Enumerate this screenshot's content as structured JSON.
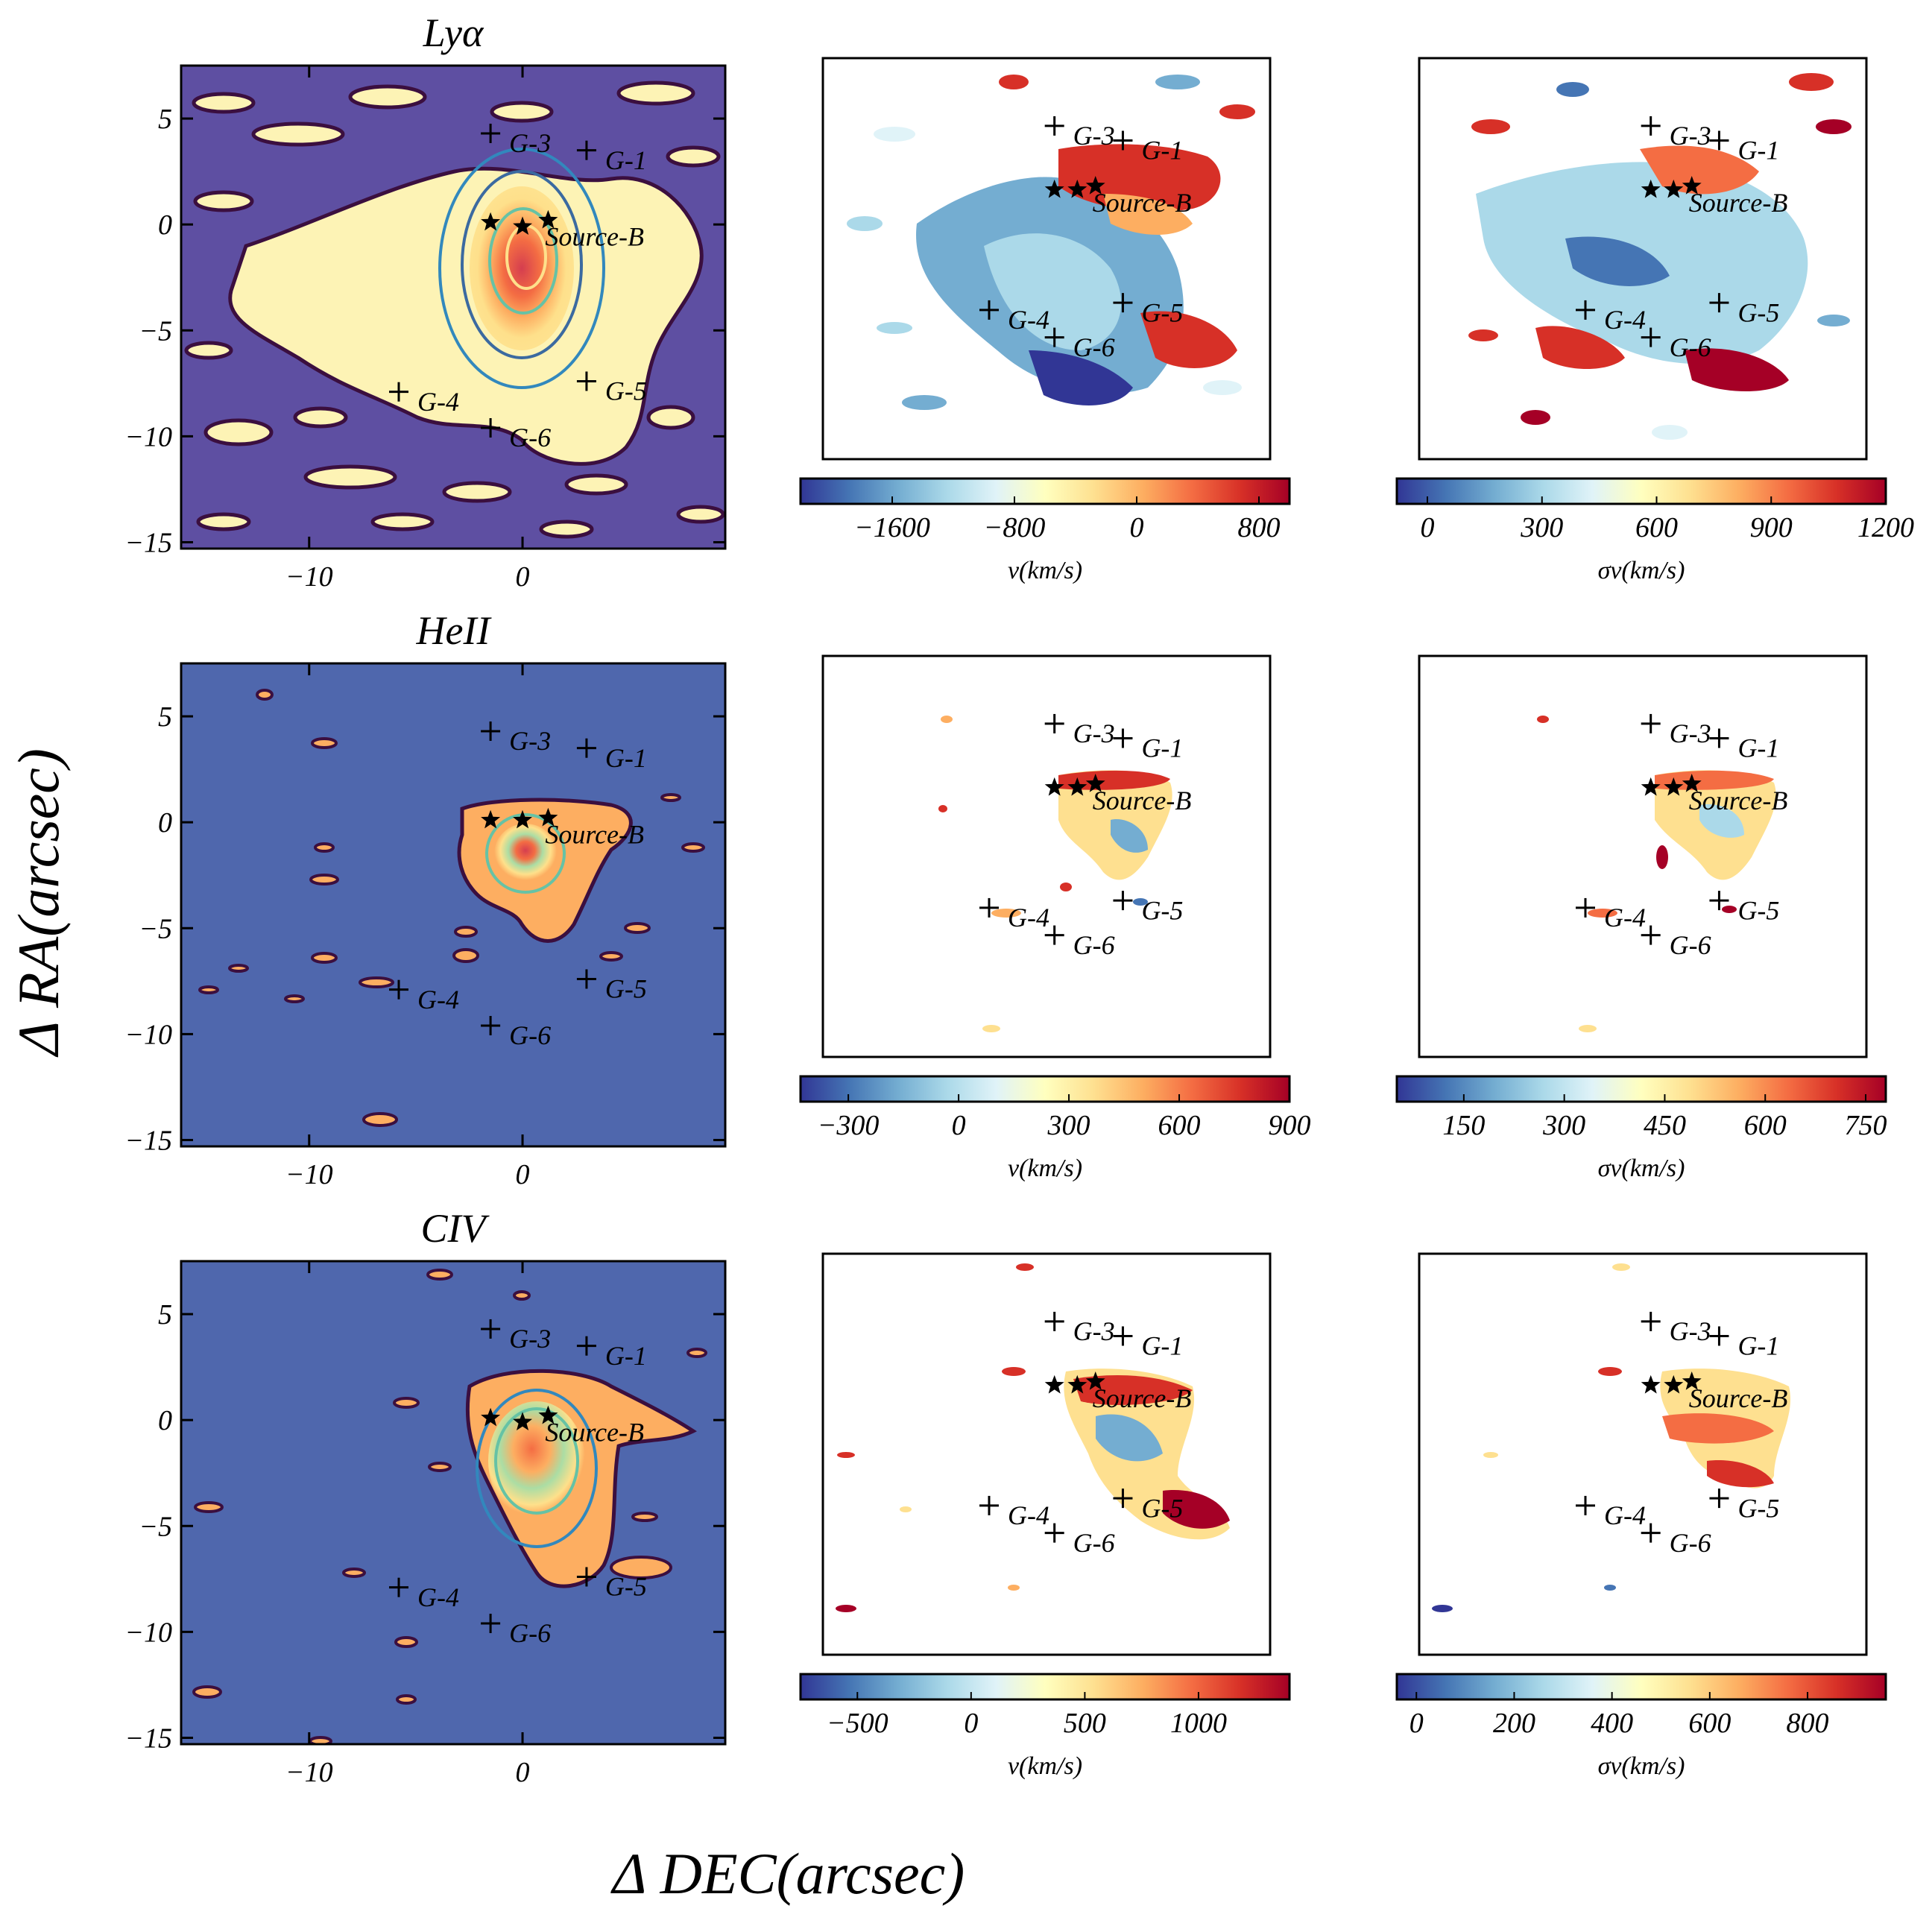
{
  "figure": {
    "xlabel": "Δ DEC(arcsec)",
    "ylabel": "Δ RA(arcsec)"
  },
  "chart_data": [
    {
      "type": "heatmap",
      "title": "Lyα",
      "panel": "flux-map",
      "background": "#5e4fa2",
      "x_ticks": [
        "−10",
        "0"
      ],
      "y_ticks": [
        "5",
        "0",
        "−5",
        "−10",
        "−15"
      ],
      "xlim": [
        -16,
        9.5
      ],
      "ylim": [
        -15.3,
        7.5
      ],
      "markers": [
        {
          "name": "G-1",
          "x": 3.0,
          "y": 3.5
        },
        {
          "name": "G-3",
          "x": -1.5,
          "y": 4.3
        },
        {
          "name": "G-4",
          "x": -5.8,
          "y": -7.9
        },
        {
          "name": "G-5",
          "x": 3.0,
          "y": -7.4
        },
        {
          "name": "G-6",
          "x": -1.5,
          "y": -9.6
        }
      ],
      "stars": [
        {
          "x": -1.5,
          "y": 0.1
        },
        {
          "x": 0.0,
          "y": -0.1
        },
        {
          "x": 1.2,
          "y": 0.2
        }
      ],
      "star_label": "Source-B"
    },
    {
      "type": "heatmap",
      "title": "HeII",
      "panel": "flux-map",
      "background": "#4f67ad",
      "x_ticks": [
        "−10",
        "0"
      ],
      "y_ticks": [
        "5",
        "0",
        "−5",
        "−10",
        "−15"
      ],
      "xlim": [
        -16,
        9.5
      ],
      "ylim": [
        -15.3,
        7.5
      ],
      "markers": [
        {
          "name": "G-1",
          "x": 3.0,
          "y": 3.5
        },
        {
          "name": "G-3",
          "x": -1.5,
          "y": 4.3
        },
        {
          "name": "G-4",
          "x": -5.8,
          "y": -7.9
        },
        {
          "name": "G-5",
          "x": 3.0,
          "y": -7.4
        },
        {
          "name": "G-6",
          "x": -1.5,
          "y": -9.6
        }
      ],
      "stars": [
        {
          "x": -1.5,
          "y": 0.1
        },
        {
          "x": 0.0,
          "y": 0.1
        },
        {
          "x": 1.2,
          "y": 0.2
        }
      ],
      "star_label": "Source-B"
    },
    {
      "type": "heatmap",
      "title": "CIV",
      "panel": "flux-map",
      "background": "#4f67ad",
      "x_ticks": [
        "−10",
        "0"
      ],
      "y_ticks": [
        "5",
        "0",
        "−5",
        "−10",
        "−15"
      ],
      "xlim": [
        -16,
        9.5
      ],
      "ylim": [
        -15.3,
        7.5
      ],
      "markers": [
        {
          "name": "G-1",
          "x": 3.0,
          "y": 3.5
        },
        {
          "name": "G-3",
          "x": -1.5,
          "y": 4.3
        },
        {
          "name": "G-4",
          "x": -5.8,
          "y": -7.9
        },
        {
          "name": "G-5",
          "x": 3.0,
          "y": -7.4
        },
        {
          "name": "G-6",
          "x": -1.5,
          "y": -9.6
        }
      ],
      "stars": [
        {
          "x": -1.5,
          "y": 0.1
        },
        {
          "x": 0.0,
          "y": -0.1
        },
        {
          "x": 1.2,
          "y": 0.2
        }
      ],
      "star_label": "Source-B"
    },
    {
      "type": "heatmap",
      "panel": "velocity-map",
      "line": "Lyα",
      "colorbar": {
        "label": "v(km/s)",
        "min": -2200,
        "max": 1000,
        "ticks": [
          "−1600",
          "−800",
          "0",
          "800"
        ],
        "tick_values": [
          -1600,
          -800,
          0,
          800
        ]
      },
      "markers": [
        "G-1",
        "G-3",
        "G-4",
        "G-5",
        "G-6"
      ],
      "star_label": "Source-B"
    },
    {
      "type": "heatmap",
      "panel": "dispersion-map",
      "line": "Lyα",
      "colorbar": {
        "label": "σv(km/s)",
        "min": -80,
        "max": 1200,
        "ticks": [
          "0",
          "300",
          "600",
          "900",
          "1200"
        ],
        "tick_values": [
          0,
          300,
          600,
          900,
          1200
        ]
      },
      "markers": [
        "G-1",
        "G-3",
        "G-4",
        "G-5",
        "G-6"
      ],
      "star_label": "Source-B"
    },
    {
      "type": "heatmap",
      "panel": "velocity-map",
      "line": "HeII",
      "colorbar": {
        "label": "v(km/s)",
        "min": -430,
        "max": 900,
        "ticks": [
          "−300",
          "0",
          "300",
          "600",
          "900"
        ],
        "tick_values": [
          -300,
          0,
          300,
          600,
          900
        ]
      },
      "markers": [
        "G-1",
        "G-3",
        "G-4",
        "G-5",
        "G-6"
      ],
      "star_label": "Source-B"
    },
    {
      "type": "heatmap",
      "panel": "dispersion-map",
      "line": "HeII",
      "colorbar": {
        "label": "σv(km/s)",
        "min": 50,
        "max": 780,
        "ticks": [
          "150",
          "300",
          "450",
          "600",
          "750"
        ],
        "tick_values": [
          150,
          300,
          450,
          600,
          750
        ]
      },
      "markers": [
        "G-1",
        "G-3",
        "G-4",
        "G-5",
        "G-6"
      ],
      "star_label": "Source-B"
    },
    {
      "type": "heatmap",
      "panel": "velocity-map",
      "line": "CIV",
      "colorbar": {
        "label": "v(km/s)",
        "min": -750,
        "max": 1400,
        "ticks": [
          "−500",
          "0",
          "500",
          "1000"
        ],
        "tick_values": [
          -500,
          0,
          500,
          1000
        ]
      },
      "markers": [
        "G-1",
        "G-3",
        "G-4",
        "G-5",
        "G-6"
      ],
      "star_label": "Source-B"
    },
    {
      "type": "heatmap",
      "panel": "dispersion-map",
      "line": "CIV",
      "colorbar": {
        "label": "σv(km/s)",
        "min": -40,
        "max": 960,
        "ticks": [
          "0",
          "200",
          "400",
          "600",
          "800"
        ],
        "tick_values": [
          0,
          200,
          400,
          600,
          800
        ]
      },
      "markers": [
        "G-1",
        "G-3",
        "G-4",
        "G-5",
        "G-6"
      ],
      "star_label": "Source-B"
    }
  ]
}
